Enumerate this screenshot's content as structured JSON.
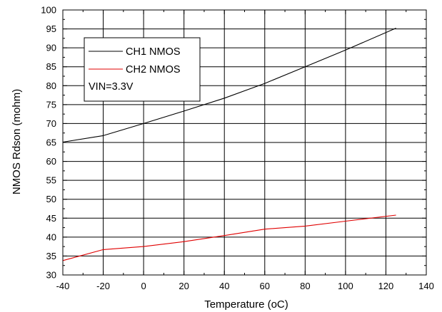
{
  "chart_data": {
    "type": "line",
    "title": "",
    "xlabel": "Temperature (oC)",
    "ylabel": "NMOS Rdson (mohm)",
    "xlim": [
      -40,
      140
    ],
    "ylim": [
      30,
      100
    ],
    "xticks": [
      -40,
      -20,
      0,
      20,
      40,
      60,
      80,
      100,
      120,
      140
    ],
    "yticks": [
      30,
      35,
      40,
      45,
      50,
      55,
      60,
      65,
      70,
      75,
      80,
      85,
      90,
      95,
      100
    ],
    "grid": true,
    "legend_position": "top-left",
    "legend_note": "VIN=3.3V",
    "series": [
      {
        "name": "CH1 NMOS",
        "color": "#000000",
        "x": [
          -40,
          -20,
          0,
          20,
          40,
          60,
          80,
          100,
          125
        ],
        "values": [
          65.1,
          66.8,
          70.0,
          73.3,
          76.7,
          80.6,
          85.0,
          89.4,
          95.2
        ]
      },
      {
        "name": "CH2 NMOS",
        "color": "#e00000",
        "x": [
          -40,
          -20,
          0,
          20,
          40,
          60,
          80,
          100,
          125
        ],
        "values": [
          33.8,
          36.7,
          37.5,
          38.8,
          40.4,
          42.1,
          42.9,
          44.2,
          45.8
        ]
      }
    ]
  }
}
